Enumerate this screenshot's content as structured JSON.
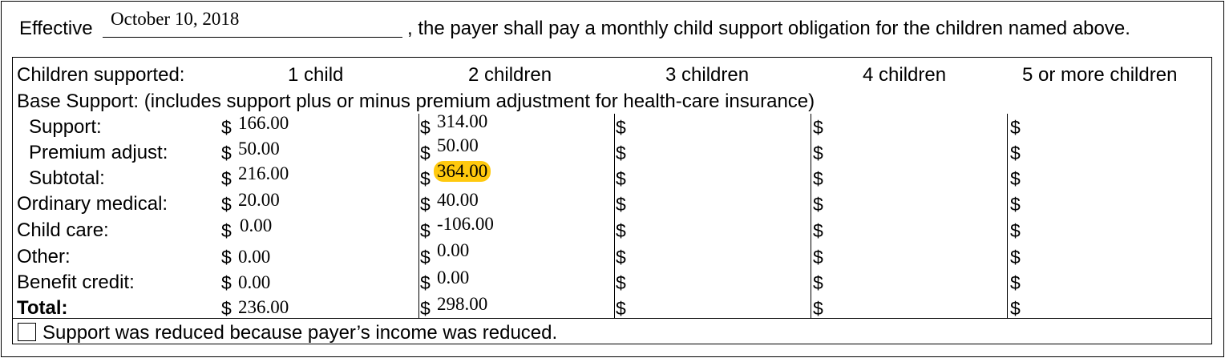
{
  "effective": {
    "prefix": "Effective",
    "date": "October 10, 2018",
    "suffix": ", the payer shall pay a monthly child support obligation for the children named above."
  },
  "table": {
    "header_label": "Children supported:",
    "columns": [
      "1 child",
      "2 children",
      "3 children",
      "4 children",
      "5 or more children"
    ],
    "base_support_note": "Base Support: (includes support plus or minus premium adjustment for health-care insurance)",
    "currency": "$",
    "rows": [
      {
        "label": "Support:",
        "values": [
          "166.00",
          "314.00",
          "",
          "",
          ""
        ]
      },
      {
        "label": "Premium adjust:",
        "values": [
          "50.00",
          "50.00",
          "",
          "",
          ""
        ]
      },
      {
        "label": "Subtotal:",
        "values": [
          "216.00",
          "364.00",
          "",
          "",
          ""
        ]
      },
      {
        "label": "Ordinary medical:",
        "values": [
          "20.00",
          "40.00",
          "",
          "",
          ""
        ]
      },
      {
        "label": "Child care:",
        "values": [
          "0.00",
          "-106.00",
          "",
          "",
          ""
        ]
      },
      {
        "label": "Other:",
        "values": [
          "0.00",
          "0.00",
          "",
          "",
          ""
        ]
      },
      {
        "label": "Benefit credit:",
        "values": [
          "0.00",
          "0.00",
          "",
          "",
          ""
        ]
      },
      {
        "label": "Total:",
        "values": [
          "236.00",
          "298.00",
          "",
          "",
          ""
        ]
      }
    ],
    "highlight_color": "#ffc90e",
    "checkbox": {
      "label": "Support was reduced because payer’s income was reduced.",
      "checked": false
    }
  }
}
